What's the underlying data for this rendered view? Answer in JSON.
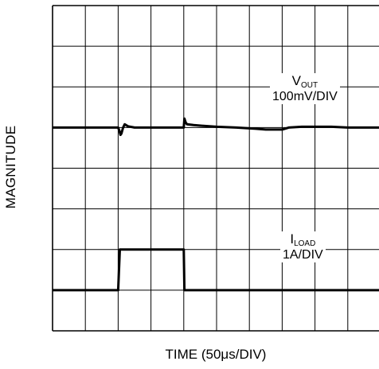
{
  "chart_data": {
    "type": "line",
    "xlabel": "TIME (50μs/DIV)",
    "ylabel": "MAGNITUDE",
    "x_divisions": 10,
    "y_divisions": 8,
    "grid": true,
    "series": [
      {
        "name": "VOUT",
        "name_symbol": "V",
        "name_subscript": "OUT",
        "scale": "100mV/DIV",
        "x_div": [
          0,
          2.0,
          2.04,
          2.07,
          2.1,
          2.15,
          2.2,
          2.3,
          2.5,
          4.0,
          4.02,
          4.06,
          4.1,
          4.3,
          4.6,
          5.0,
          5.6,
          6.2,
          6.5,
          7.0,
          7.2,
          7.6,
          8.5,
          9.0,
          10
        ],
        "y_div": [
          5.0,
          5.0,
          4.92,
          4.82,
          4.85,
          5.0,
          5.08,
          5.03,
          5.0,
          5.0,
          5.22,
          5.12,
          5.08,
          5.06,
          5.04,
          5.02,
          5.0,
          4.97,
          4.95,
          4.95,
          5.0,
          5.02,
          5.02,
          5.0,
          5.0
        ]
      },
      {
        "name": "ILOAD",
        "name_symbol": "I",
        "name_subscript": "LOAD",
        "scale": "1A/DIV",
        "x_div": [
          0,
          2.0,
          2.05,
          4.0,
          4.02,
          10
        ],
        "y_div": [
          1.0,
          1.0,
          2.0,
          2.0,
          1.0,
          1.0
        ]
      }
    ]
  }
}
